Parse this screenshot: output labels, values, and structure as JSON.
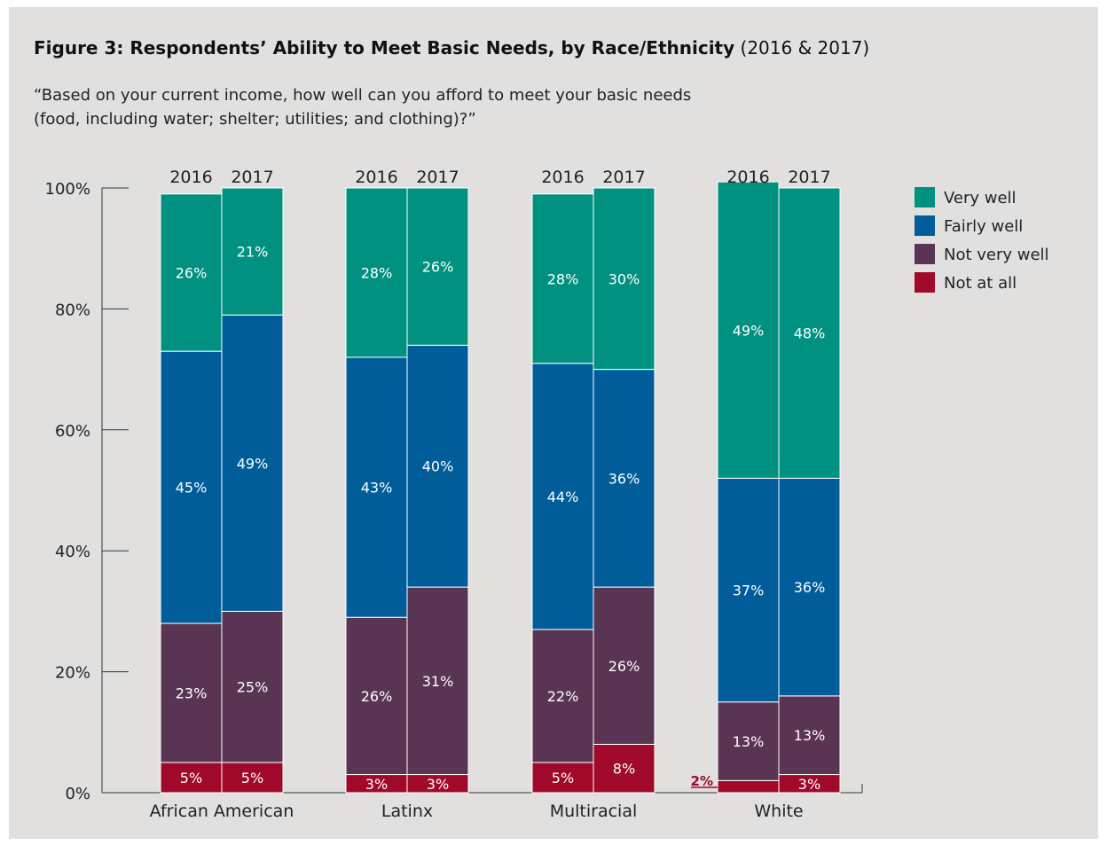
{
  "title": {
    "bold": "Figure 3: Respondents’ Ability to Meet Basic Needs, by Race/Ethnicity",
    "normal": "(2016 & 2017)"
  },
  "subtitle": {
    "line1": "“Based on your current income, how well can you afford to meet your basic needs",
    "line2": "(food, including water; shelter; utilities; and clothing)?”"
  },
  "colors": {
    "Very well": "#009180",
    "Fairly well": "#005d9a",
    "Not very well": "#5a3553",
    "Not at all": "#a0092a",
    "callout": "#a0092a"
  },
  "chart_data": {
    "type": "bar",
    "stacked": true,
    "ylim": [
      0,
      100
    ],
    "yticks": [
      "0%",
      "20%",
      "40%",
      "60%",
      "80%",
      "100%"
    ],
    "groups": [
      "African American",
      "Latinx",
      "Multiracial",
      "White"
    ],
    "years": [
      "2016",
      "2017"
    ],
    "legend_position": "top-right",
    "series": [
      {
        "name": "Not at all",
        "values": [
          [
            5,
            5
          ],
          [
            3,
            3
          ],
          [
            5,
            8
          ],
          [
            2,
            3
          ]
        ]
      },
      {
        "name": "Not very well",
        "values": [
          [
            23,
            25
          ],
          [
            26,
            31
          ],
          [
            22,
            26
          ],
          [
            13,
            13
          ]
        ]
      },
      {
        "name": "Fairly well",
        "values": [
          [
            45,
            49
          ],
          [
            43,
            40
          ],
          [
            44,
            36
          ],
          [
            37,
            36
          ]
        ]
      },
      {
        "name": "Very well",
        "values": [
          [
            26,
            21
          ],
          [
            28,
            26
          ],
          [
            28,
            30
          ],
          [
            49,
            48
          ]
        ]
      }
    ],
    "legend": [
      "Very well",
      "Fairly well",
      "Not very well",
      "Not at all"
    ],
    "callout": "2%"
  }
}
